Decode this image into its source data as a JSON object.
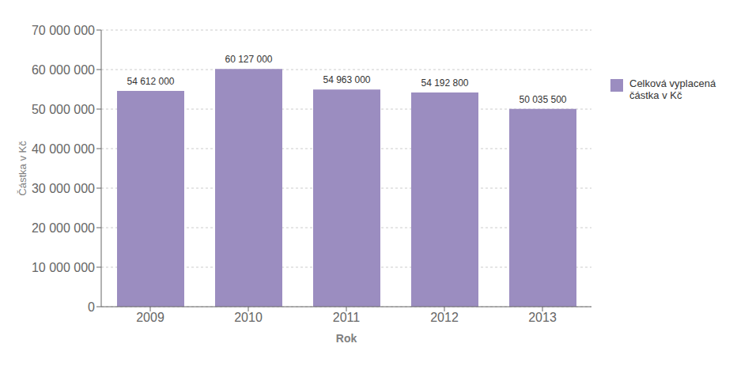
{
  "chart_data": {
    "type": "bar",
    "xlabel": "Rok",
    "ylabel": "Částka v Kč",
    "categories": [
      "2009",
      "2010",
      "2011",
      "2012",
      "2013"
    ],
    "series": [
      {
        "name": "Celková vyplacená\nčástka v Kč",
        "color": "#9B8DC0",
        "values": [
          54612000,
          60127000,
          54963000,
          54192800,
          50035500
        ],
        "value_labels": [
          "54 612 000",
          "60 127 000",
          "54 963 000",
          "54 192 800",
          "50 035 500"
        ]
      }
    ],
    "ylim": [
      0,
      70000000
    ],
    "yticks": [
      0,
      {
        "value": 10000000,
        "label": "10 000 000"
      },
      {
        "value": 20000000,
        "label": "20 000 000"
      },
      {
        "value": 30000000,
        "label": "30 000 000"
      },
      {
        "value": 40000000,
        "label": "40 000 000"
      },
      {
        "value": 50000000,
        "label": "50 000 000"
      },
      {
        "value": 60000000,
        "label": "60 000 000"
      },
      {
        "value": 70000000,
        "label": "70 000 000"
      }
    ],
    "grid": true,
    "legend": "right",
    "data_labels": true
  }
}
